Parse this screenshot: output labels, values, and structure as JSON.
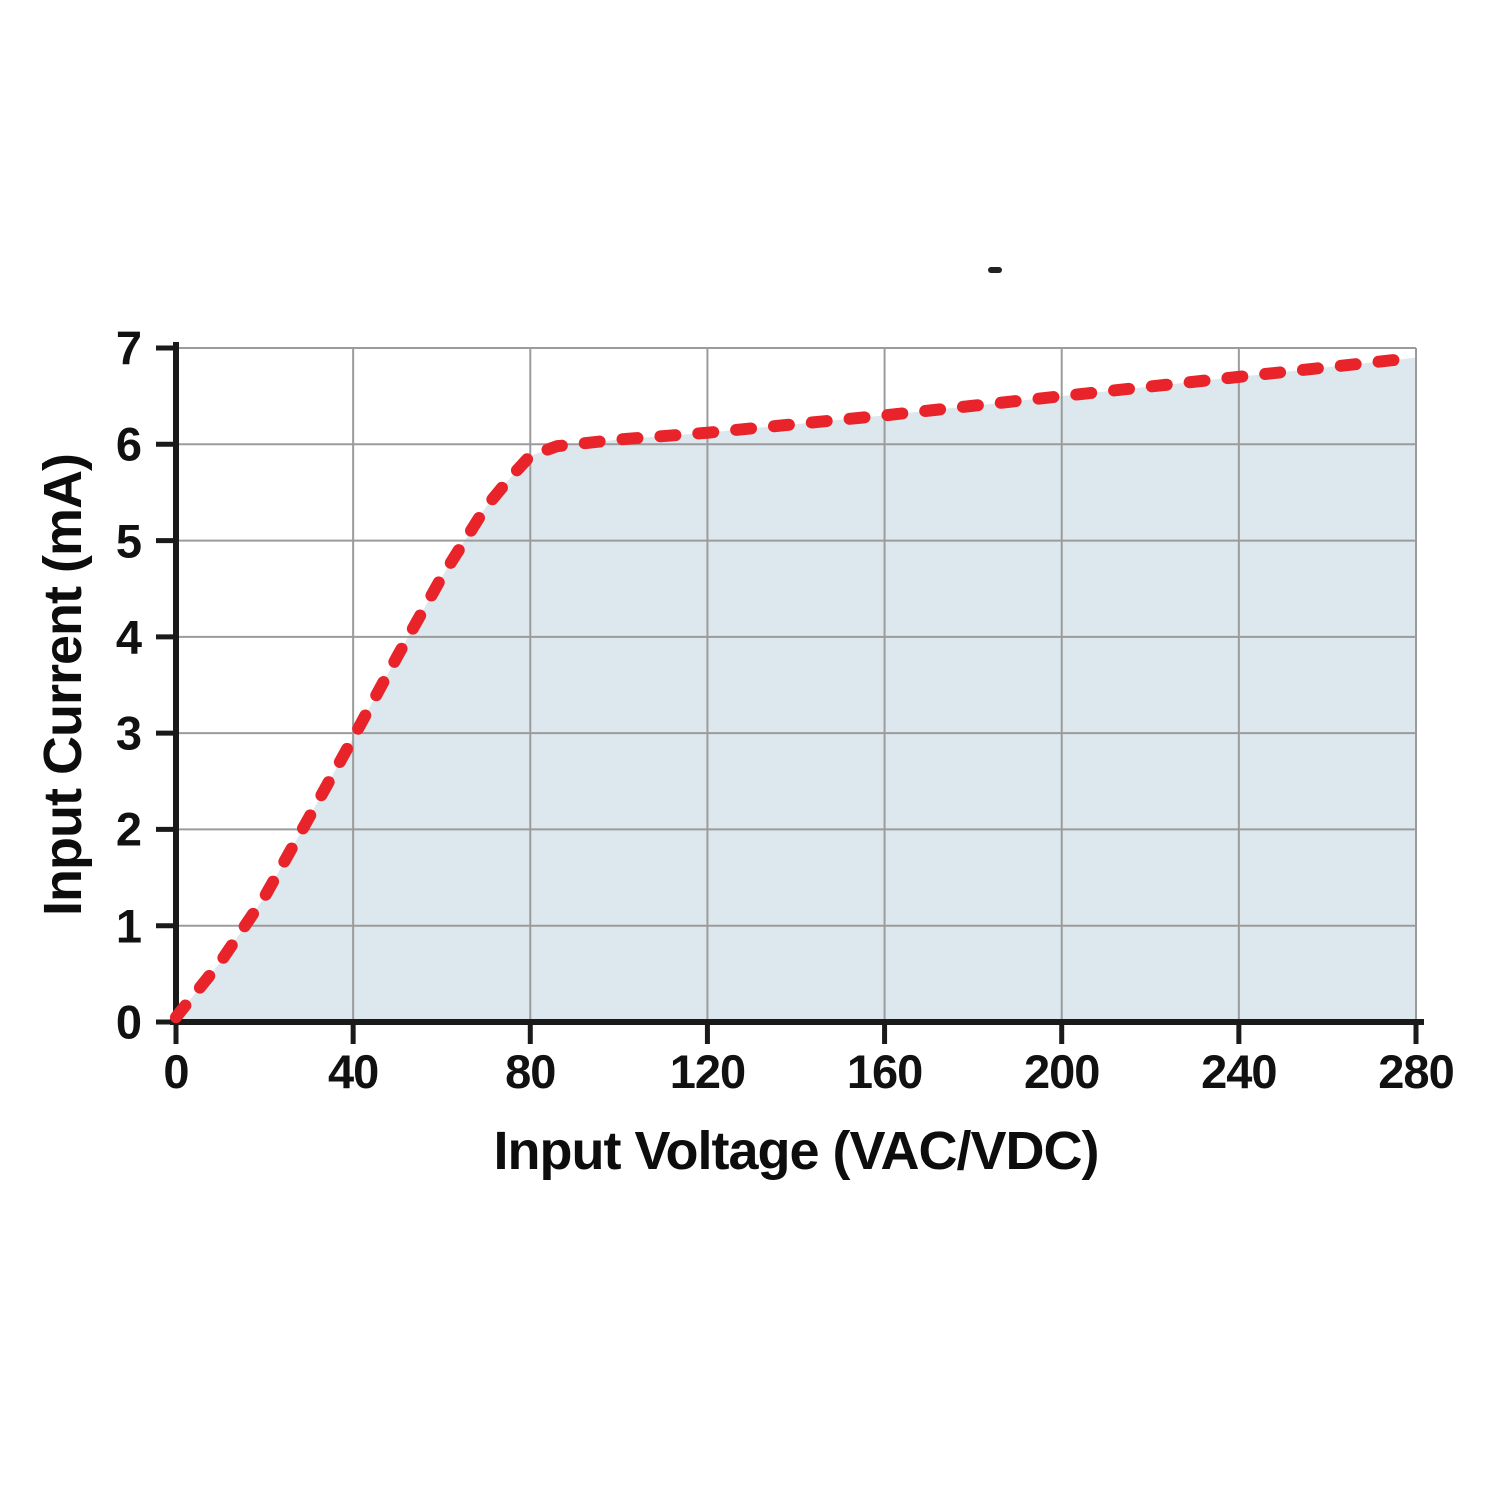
{
  "chart_data": {
    "type": "area",
    "title": "",
    "xlabel": "Input Voltage (VAC/VDC)",
    "ylabel": "Input Current (mA)",
    "xlim": [
      0,
      280
    ],
    "ylim": [
      0,
      7
    ],
    "x_ticks": [
      0,
      40,
      80,
      120,
      160,
      200,
      240,
      280
    ],
    "y_ticks": [
      0,
      1,
      2,
      3,
      4,
      5,
      6,
      7
    ],
    "grid": true,
    "legend": false,
    "series": [
      {
        "name": "input-current",
        "line_style": "dashed",
        "color": "#e8232a",
        "fill": "#dce8ee",
        "points": [
          [
            0,
            0.05
          ],
          [
            10,
            0.62
          ],
          [
            20,
            1.3
          ],
          [
            30,
            2.12
          ],
          [
            40,
            2.95
          ],
          [
            50,
            3.8
          ],
          [
            60,
            4.62
          ],
          [
            70,
            5.35
          ],
          [
            76,
            5.68
          ],
          [
            80,
            5.88
          ],
          [
            86,
            5.98
          ],
          [
            100,
            6.05
          ],
          [
            120,
            6.12
          ],
          [
            140,
            6.21
          ],
          [
            160,
            6.3
          ],
          [
            180,
            6.4
          ],
          [
            200,
            6.5
          ],
          [
            220,
            6.6
          ],
          [
            240,
            6.7
          ],
          [
            260,
            6.8
          ],
          [
            280,
            6.9
          ]
        ]
      }
    ],
    "colors": {
      "grid": "#9b9b9b",
      "axis": "#1a1a1a",
      "text": "#111111",
      "background": "#ffffff"
    }
  },
  "annotations": {
    "stray_dash_glyph": "-"
  }
}
